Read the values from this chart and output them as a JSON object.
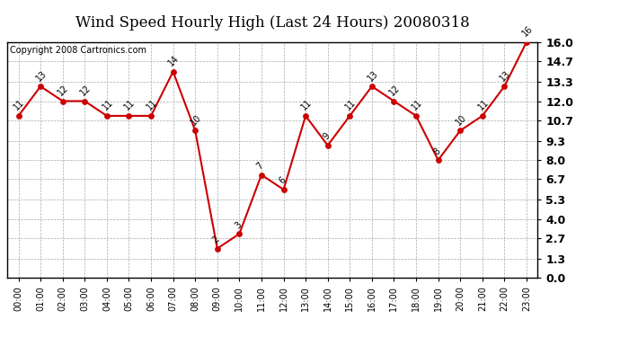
{
  "title": "Wind Speed Hourly High (Last 24 Hours) 20080318",
  "copyright": "Copyright 2008 Cartronics.com",
  "hours": [
    "00:00",
    "01:00",
    "02:00",
    "03:00",
    "04:00",
    "05:00",
    "06:00",
    "07:00",
    "08:00",
    "09:00",
    "10:00",
    "11:00",
    "12:00",
    "13:00",
    "14:00",
    "15:00",
    "16:00",
    "17:00",
    "18:00",
    "19:00",
    "20:00",
    "21:00",
    "22:00",
    "23:00"
  ],
  "values": [
    11,
    13,
    12,
    12,
    11,
    11,
    11,
    14,
    10,
    2,
    3,
    7,
    6,
    11,
    9,
    11,
    13,
    12,
    11,
    8,
    10,
    11,
    13,
    16
  ],
  "yticks": [
    0.0,
    1.3,
    2.7,
    4.0,
    5.3,
    6.7,
    8.0,
    9.3,
    10.7,
    12.0,
    13.3,
    14.7,
    16.0
  ],
  "ytick_labels": [
    "0.0",
    "1.3",
    "2.7",
    "4.0",
    "5.3",
    "6.7",
    "8.0",
    "9.3",
    "10.7",
    "12.0",
    "13.3",
    "14.7",
    "16.0"
  ],
  "ylim": [
    0.0,
    16.0
  ],
  "line_color": "#cc0000",
  "marker_color": "#cc0000",
  "bg_color": "#ffffff",
  "grid_color": "#aaaaaa",
  "title_fontsize": 12,
  "copyright_fontsize": 7,
  "label_fontsize": 7,
  "ytick_fontsize": 9,
  "xtick_fontsize": 7
}
